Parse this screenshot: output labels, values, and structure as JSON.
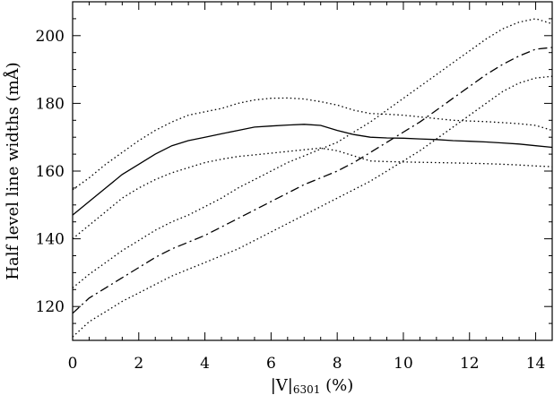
{
  "chart_data": {
    "type": "line",
    "title": "",
    "xlabel": "|V|6301 (%)",
    "xlabel_main": "|V|",
    "xlabel_sub": "6301",
    "xlabel_unit": " (%)",
    "ylabel": "Half level line widths (mÅ)",
    "xlim": [
      0,
      14.5
    ],
    "ylim": [
      110,
      210
    ],
    "xticks": [
      0,
      2,
      4,
      6,
      8,
      10,
      12,
      14
    ],
    "yticks": [
      120,
      140,
      160,
      180,
      200
    ],
    "grid": false,
    "legend": "none",
    "series": [
      {
        "style": "solid",
        "x": [
          0,
          0.5,
          1,
          1.5,
          2,
          2.5,
          3,
          3.5,
          4,
          4.5,
          5,
          5.5,
          6,
          6.5,
          7,
          7.5,
          8,
          8.5,
          9,
          9.5,
          10,
          10.5,
          11,
          11.5,
          12,
          12.5,
          13,
          13.5,
          14,
          14.5
        ],
        "y": [
          147,
          151,
          155,
          159,
          162,
          165,
          167.5,
          169,
          170,
          171,
          172,
          173,
          173.3,
          173.6,
          173.8,
          173.5,
          172,
          170.8,
          170,
          169.8,
          169.7,
          169.5,
          169.3,
          169,
          168.8,
          168.6,
          168.3,
          168,
          167.5,
          167
        ]
      },
      {
        "style": "dotted",
        "x": [
          0,
          0.5,
          1,
          1.5,
          2,
          2.5,
          3,
          3.5,
          4,
          4.5,
          5,
          5.5,
          6,
          6.5,
          7,
          7.5,
          8,
          8.5,
          9,
          9.5,
          10,
          10.5,
          11,
          11.5,
          12,
          12.5,
          13,
          13.5,
          14,
          14.5
        ],
        "y": [
          154.5,
          158,
          162,
          165.5,
          169,
          172,
          174.5,
          176.5,
          177.5,
          178.5,
          180,
          181,
          181.5,
          181.6,
          181.3,
          180.5,
          179.5,
          178,
          177,
          176.8,
          176.5,
          176,
          175.5,
          175,
          174.8,
          174.6,
          174.3,
          174,
          173.5,
          172
        ]
      },
      {
        "style": "dotted",
        "x": [
          0,
          0.5,
          1,
          1.5,
          2,
          2.5,
          3,
          3.5,
          4,
          4.5,
          5,
          5.5,
          6,
          6.5,
          7,
          7.5,
          8,
          8.5,
          9,
          9.5,
          10,
          10.5,
          11,
          11.5,
          12,
          12.5,
          13,
          13.5,
          14,
          14.5
        ],
        "y": [
          140,
          144,
          148,
          152,
          155,
          157.5,
          159.5,
          161,
          162.5,
          163.5,
          164.3,
          164.8,
          165.3,
          165.8,
          166.3,
          166.8,
          166,
          164.5,
          163,
          162.8,
          162.7,
          162.6,
          162.5,
          162.4,
          162.3,
          162.2,
          162,
          161.8,
          161.5,
          161.3
        ]
      },
      {
        "style": "dashdot",
        "x": [
          0,
          0.5,
          1,
          1.5,
          2,
          2.5,
          3,
          3.5,
          4,
          4.5,
          5,
          5.5,
          6,
          6.5,
          7,
          7.5,
          8,
          8.5,
          9,
          9.5,
          10,
          10.5,
          11,
          11.5,
          12,
          12.5,
          13,
          13.5,
          14,
          14.5
        ],
        "y": [
          118,
          122.5,
          125.5,
          128.5,
          131.5,
          134.5,
          137,
          139,
          141,
          143.5,
          146,
          148.5,
          151,
          153.5,
          156,
          158,
          160,
          162.5,
          165.5,
          168.5,
          171.5,
          174.5,
          178,
          181.5,
          185,
          188.5,
          191.5,
          194,
          196,
          196.5
        ]
      },
      {
        "style": "dotted",
        "x": [
          0,
          0.5,
          1,
          1.5,
          2,
          2.5,
          3,
          3.5,
          4,
          4.5,
          5,
          5.5,
          6,
          6.5,
          7,
          7.5,
          8,
          8.5,
          9,
          9.5,
          10,
          10.5,
          11,
          11.5,
          12,
          12.5,
          13,
          13.5,
          14,
          14.5
        ],
        "y": [
          125.5,
          129.5,
          133,
          136.5,
          139.5,
          142.5,
          145,
          147,
          149.5,
          152,
          155,
          157.5,
          160,
          162.5,
          164.5,
          166.5,
          168.5,
          171.5,
          174.5,
          178,
          181.5,
          185,
          188.5,
          192,
          195.5,
          199,
          202,
          204,
          205,
          203.5
        ]
      },
      {
        "style": "dotted",
        "x": [
          0,
          0.5,
          1,
          1.5,
          2,
          2.5,
          3,
          3.5,
          4,
          4.5,
          5,
          5.5,
          6,
          6.5,
          7,
          7.5,
          8,
          8.5,
          9,
          9.5,
          10,
          10.5,
          11,
          11.5,
          12,
          12.5,
          13,
          13.5,
          14,
          14.5
        ],
        "y": [
          111,
          115.5,
          118.5,
          121.5,
          124,
          126.5,
          129,
          131,
          133,
          135,
          137,
          139.5,
          142,
          144.5,
          147,
          149.5,
          152,
          154.5,
          157,
          160,
          163,
          166,
          169.5,
          173,
          176.5,
          180,
          183.5,
          186,
          187.5,
          188
        ]
      }
    ]
  }
}
